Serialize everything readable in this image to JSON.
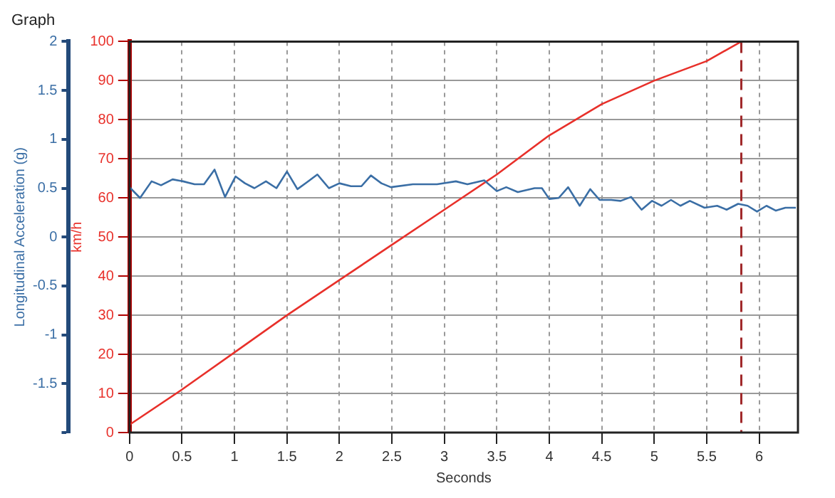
{
  "chart_data": {
    "type": "line",
    "title": "Graph",
    "xlabel": "Seconds",
    "ylabel": "Longitudinal Acceleration (g)",
    "y2label": "km/h",
    "xlim": [
      0,
      6.37
    ],
    "xticks": [
      0,
      0.5,
      1,
      1.5,
      2,
      2.5,
      3,
      3.5,
      4,
      4.5,
      5,
      5.5,
      6
    ],
    "ylim": [
      -2,
      2
    ],
    "yticks": [
      {
        "value": -2,
        "label": null
      },
      -1.5,
      -1,
      -0.5,
      0,
      0.5,
      1,
      1.5,
      2
    ],
    "y2lim": [
      0,
      100
    ],
    "y2ticks": [
      0,
      10,
      20,
      30,
      40,
      50,
      60,
      70,
      80,
      90,
      100
    ],
    "grid": true,
    "legend": false,
    "marker": "none",
    "line_style": "solid",
    "ref_lines": [
      {
        "axis": "x",
        "value": 5.83,
        "color": "#a0282a",
        "line_style": "dashed"
      }
    ],
    "series": [
      {
        "color": "#3a6ea5",
        "axis": "y",
        "x": [
          0,
          0.1,
          0.21,
          0.3,
          0.41,
          0.51,
          0.62,
          0.71,
          0.81,
          0.91,
          1.01,
          1.1,
          1.19,
          1.3,
          1.4,
          1.5,
          1.6,
          1.69,
          1.79,
          1.9,
          2,
          2.11,
          2.21,
          2.3,
          2.4,
          2.49,
          2.7,
          2.93,
          3.11,
          3.22,
          3.38,
          3.5,
          3.59,
          3.7,
          3.86,
          3.93,
          4,
          4.09,
          4.18,
          4.29,
          4.39,
          4.48,
          4.59,
          4.68,
          4.78,
          4.88,
          4.98,
          5.07,
          5.16,
          5.25,
          5.34,
          5.48,
          5.6,
          5.69,
          5.8,
          5.89,
          5.98,
          6.07,
          6.16,
          6.25,
          6.35
        ],
        "values": [
          0.51,
          0.4,
          0.57,
          0.53,
          0.59,
          0.57,
          0.54,
          0.54,
          0.69,
          0.41,
          0.62,
          0.55,
          0.5,
          0.57,
          0.5,
          0.67,
          0.49,
          0.56,
          0.64,
          0.5,
          0.55,
          0.52,
          0.52,
          0.63,
          0.55,
          0.51,
          0.54,
          0.54,
          0.57,
          0.54,
          0.58,
          0.47,
          0.51,
          0.46,
          0.5,
          0.5,
          0.39,
          0.4,
          0.51,
          0.32,
          0.49,
          0.38,
          0.38,
          0.37,
          0.41,
          0.28,
          0.37,
          0.32,
          0.38,
          0.32,
          0.37,
          0.3,
          0.32,
          0.28,
          0.34,
          0.32,
          0.26,
          0.32,
          0.27,
          0.3,
          0.3
        ]
      },
      {
        "color": "#e8302a",
        "axis": "y2",
        "x": [
          0,
          0.5,
          1,
          1.5,
          2,
          2.5,
          3,
          3.5,
          4,
          4.5,
          5,
          5.5,
          5.83
        ],
        "values": [
          2,
          11,
          20.5,
          30,
          39,
          48,
          57,
          66,
          76,
          84,
          90,
          95,
          100
        ]
      }
    ]
  }
}
